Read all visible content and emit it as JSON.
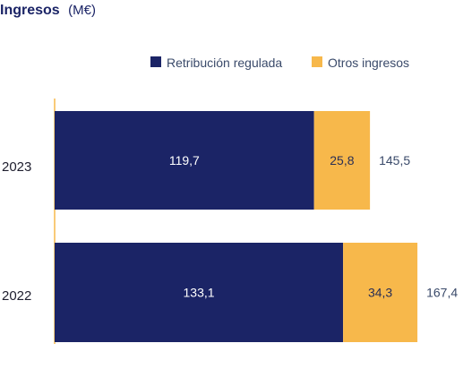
{
  "chart_data": {
    "type": "bar",
    "orientation": "horizontal",
    "stacked": true,
    "title": "Ingresos",
    "title_unit": "(M€)",
    "categories": [
      "2023",
      "2022"
    ],
    "series": [
      {
        "name": "Retribución regulada",
        "values": [
          119.7,
          133.1
        ],
        "labels": [
          "119,7",
          "133,1"
        ],
        "color": "#1b2466"
      },
      {
        "name": "Otros ingresos",
        "values": [
          25.8,
          34.3
        ],
        "labels": [
          "25,8",
          "34,3"
        ],
        "color": "#f7b84b"
      }
    ],
    "totals": [
      145.5,
      167.4
    ],
    "total_labels": [
      "145,5",
      "167,4"
    ],
    "xlim": [
      0,
      175
    ],
    "grid": false,
    "legend": "top"
  }
}
